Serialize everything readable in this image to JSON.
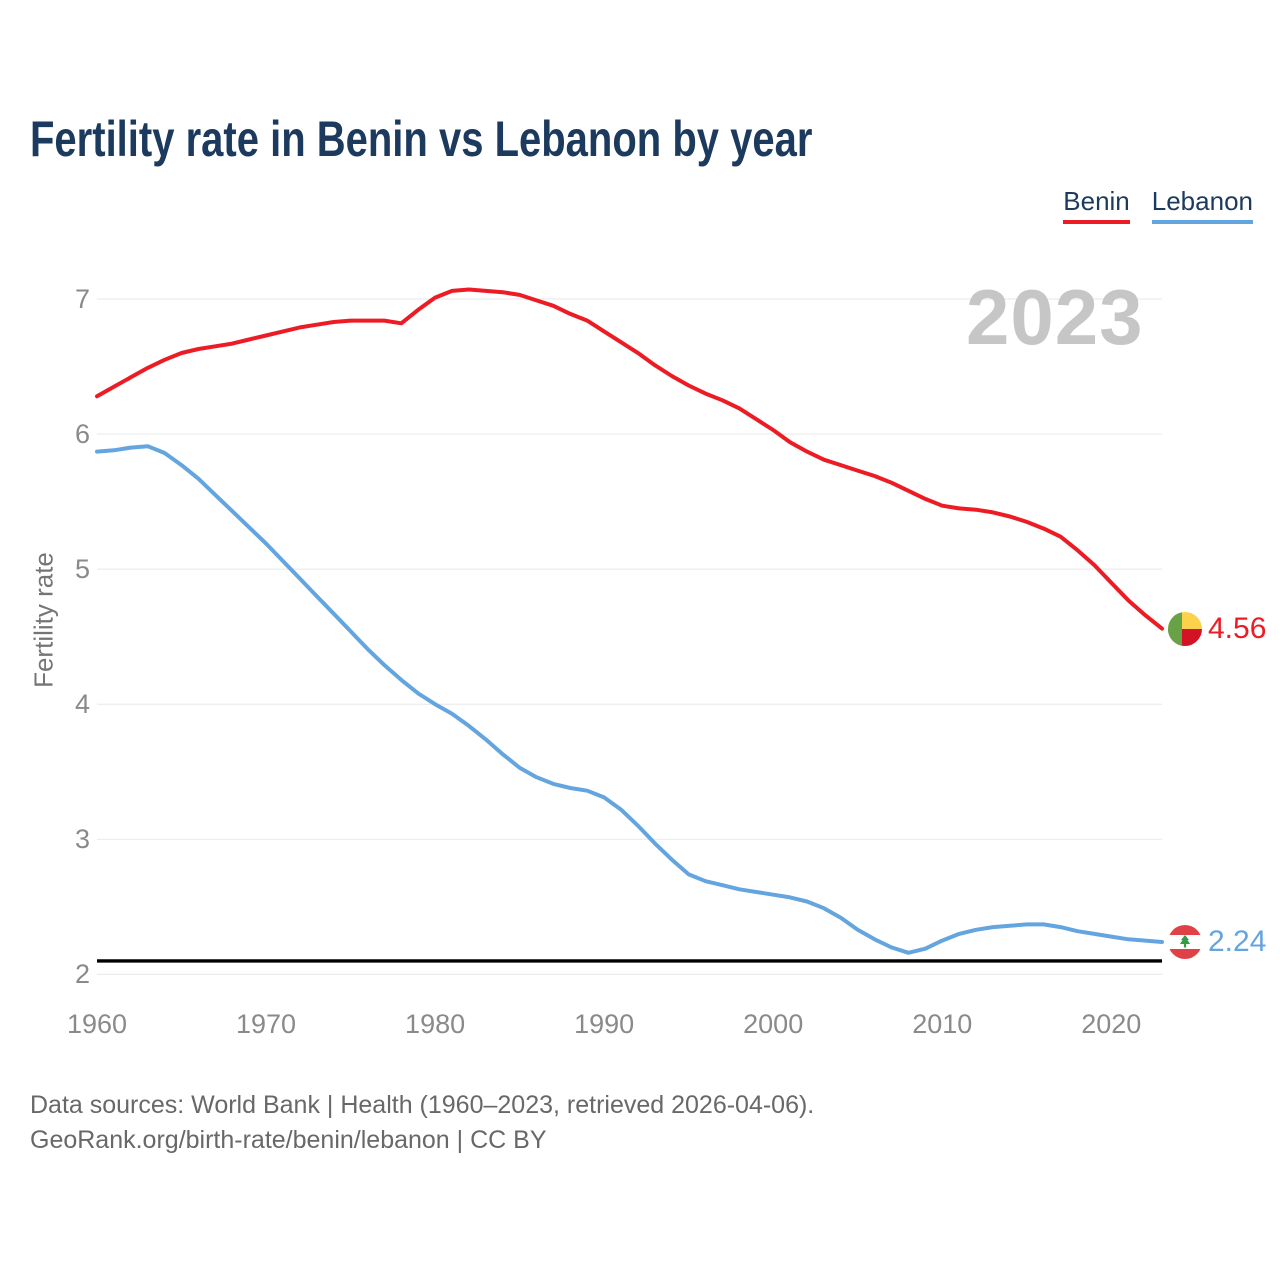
{
  "title": "Fertility rate in Benin vs Lebanon by year",
  "watermark": "2023",
  "legend": {
    "benin_label": "Benin",
    "lebanon_label": "Lebanon"
  },
  "end_labels": {
    "benin_value": "4.56",
    "lebanon_value": "2.24"
  },
  "y_axis": {
    "title": "Fertility rate"
  },
  "footer": {
    "line1": "Data sources: World Bank | Health (1960–2023, retrieved 2026-04-06).",
    "line2": "GeoRank.org/birth-rate/benin/lebanon | CC BY"
  },
  "colors": {
    "benin": "#ed1c24",
    "lebanon": "#64a5e0",
    "title": "#1c3a5e",
    "watermark": "#c6c6c6",
    "axis_text": "#8a8a8a",
    "gridline": "#ececec",
    "reference_line": "#000000"
  },
  "chart_data": {
    "type": "line",
    "title": "Fertility rate in Benin vs Lebanon by year",
    "xlabel": "",
    "ylabel": "Fertility rate",
    "ylim": [
      2,
      7
    ],
    "yticks": [
      7,
      6,
      5,
      4,
      3,
      2
    ],
    "xticks": [
      1960,
      1970,
      1980,
      1990,
      2000,
      2010,
      2020
    ],
    "grid": "horizontal",
    "legend_position": "top-right",
    "reference_line": 2.1,
    "x": [
      1960,
      1961,
      1962,
      1963,
      1964,
      1965,
      1966,
      1967,
      1968,
      1969,
      1970,
      1971,
      1972,
      1973,
      1974,
      1975,
      1976,
      1977,
      1978,
      1979,
      1980,
      1981,
      1982,
      1983,
      1984,
      1985,
      1986,
      1987,
      1988,
      1989,
      1990,
      1991,
      1992,
      1993,
      1994,
      1995,
      1996,
      1997,
      1998,
      1999,
      2000,
      2001,
      2002,
      2003,
      2004,
      2005,
      2006,
      2007,
      2008,
      2009,
      2010,
      2011,
      2012,
      2013,
      2014,
      2015,
      2016,
      2017,
      2018,
      2019,
      2020,
      2021,
      2022,
      2023
    ],
    "series": [
      {
        "name": "Benin",
        "color": "#ed1c24",
        "end_label": "4.56",
        "values": [
          6.28,
          6.35,
          6.42,
          6.49,
          6.55,
          6.6,
          6.63,
          6.65,
          6.67,
          6.7,
          6.73,
          6.76,
          6.79,
          6.81,
          6.83,
          6.84,
          6.84,
          6.84,
          6.82,
          6.92,
          7.01,
          7.06,
          7.07,
          7.06,
          7.05,
          7.03,
          6.99,
          6.95,
          6.89,
          6.84,
          6.76,
          6.68,
          6.6,
          6.51,
          6.43,
          6.36,
          6.3,
          6.25,
          6.19,
          6.11,
          6.03,
          5.94,
          5.87,
          5.81,
          5.77,
          5.73,
          5.69,
          5.64,
          5.58,
          5.52,
          5.47,
          5.45,
          5.44,
          5.42,
          5.39,
          5.35,
          5.3,
          5.24,
          5.14,
          5.03,
          4.9,
          4.77,
          4.66,
          4.56
        ]
      },
      {
        "name": "Lebanon",
        "color": "#64a5e0",
        "end_label": "2.24",
        "values": [
          5.87,
          5.88,
          5.9,
          5.91,
          5.86,
          5.77,
          5.67,
          5.55,
          5.43,
          5.31,
          5.19,
          5.06,
          4.93,
          4.8,
          4.67,
          4.54,
          4.41,
          4.29,
          4.18,
          4.08,
          4.0,
          3.93,
          3.84,
          3.74,
          3.63,
          3.53,
          3.46,
          3.41,
          3.38,
          3.36,
          3.31,
          3.22,
          3.1,
          2.97,
          2.85,
          2.74,
          2.69,
          2.66,
          2.63,
          2.61,
          2.59,
          2.57,
          2.54,
          2.49,
          2.42,
          2.33,
          2.26,
          2.2,
          2.16,
          2.19,
          2.25,
          2.3,
          2.33,
          2.35,
          2.36,
          2.37,
          2.37,
          2.35,
          2.32,
          2.3,
          2.28,
          2.26,
          2.25,
          2.24
        ]
      }
    ]
  }
}
